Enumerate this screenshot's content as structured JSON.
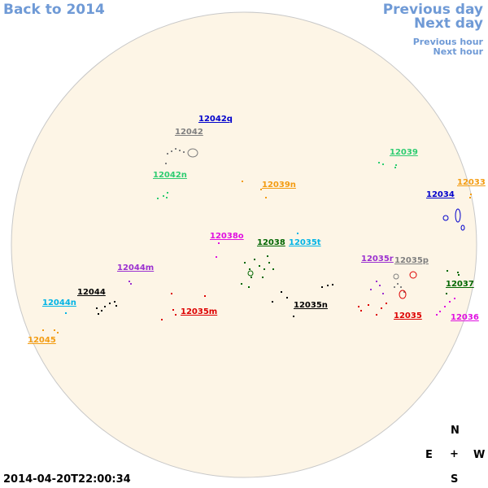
{
  "nav": {
    "back_label": "Back to 2014",
    "prev_day_label": "Previous day",
    "next_day_label": "Next day",
    "prev_hour_label": "Previous hour",
    "next_hour_label": "Next hour"
  },
  "timestamp": "2014-04-20T22:00:34",
  "compass": {
    "north": "N",
    "south": "S",
    "east": "E",
    "west": "W",
    "center": "+"
  },
  "colors": {
    "disk_fill": "#fdf5e6",
    "disk_stroke": "#c8c8c8",
    "nav_link": "#6f9ad6"
  },
  "regions": [
    {
      "label": "12042q",
      "color": "#0000cc"
    },
    {
      "label": "12042",
      "color": "#808080"
    },
    {
      "label": "12039",
      "color": "#2ecc71"
    },
    {
      "label": "12042n",
      "color": "#2ecc71"
    },
    {
      "label": "12039n",
      "color": "#f39c12"
    },
    {
      "label": "12033",
      "color": "#f39c12"
    },
    {
      "label": "12034",
      "color": "#0000cc"
    },
    {
      "label": "12038o",
      "color": "#e010e0"
    },
    {
      "label": "12038",
      "color": "#006600"
    },
    {
      "label": "12035t",
      "color": "#00b4e6"
    },
    {
      "label": "12035r",
      "color": "#9b30d0"
    },
    {
      "label": "12035p",
      "color": "#808080"
    },
    {
      "label": "12044m",
      "color": "#9b30d0"
    },
    {
      "label": "12037",
      "color": "#006600"
    },
    {
      "label": "12044",
      "color": "#000000"
    },
    {
      "label": "12044n",
      "color": "#00b4e6"
    },
    {
      "label": "12035m",
      "color": "#dd0000"
    },
    {
      "label": "12035n",
      "color": "#000000"
    },
    {
      "label": "12035",
      "color": "#dd0000"
    },
    {
      "label": "12036",
      "color": "#e010e0"
    },
    {
      "label": "12045",
      "color": "#f39c12"
    }
  ]
}
